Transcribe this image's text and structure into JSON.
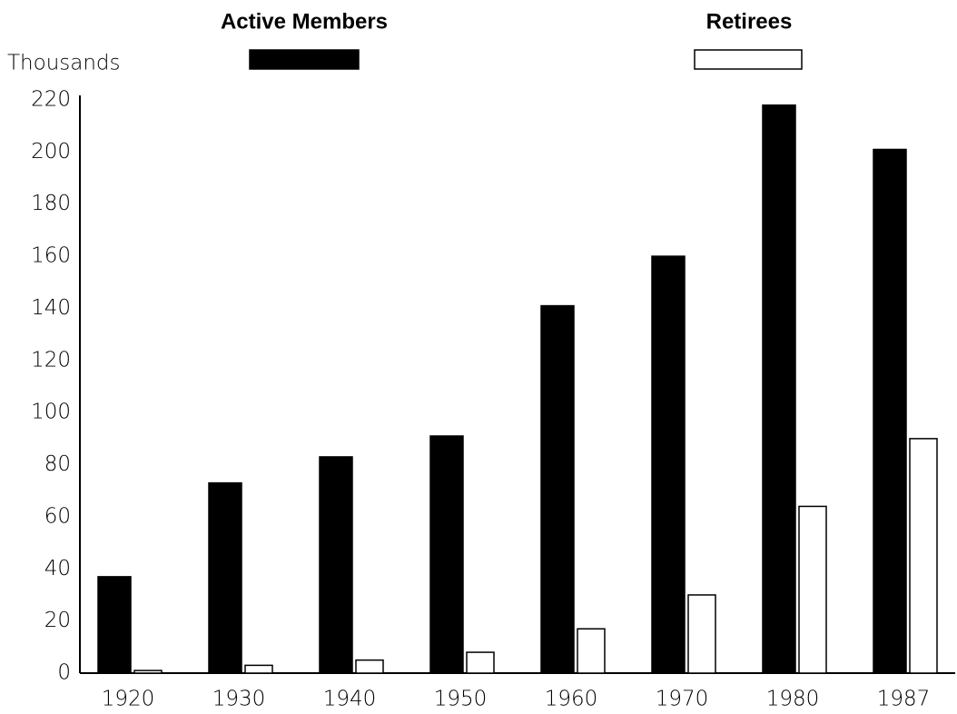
{
  "chart_data": {
    "type": "bar",
    "y_label": "Thousands",
    "categories": [
      "1920",
      "1930",
      "1940",
      "1950",
      "1960",
      "1970",
      "1980",
      "1987"
    ],
    "series": [
      {
        "name": "Active Members",
        "color": "#000000",
        "values": [
          37,
          73,
          83,
          91,
          141,
          160,
          218,
          201
        ]
      },
      {
        "name": "Retirees",
        "color": "#ffffff",
        "values": [
          1,
          3,
          5,
          8,
          17,
          30,
          64,
          90
        ]
      }
    ],
    "ylim": [
      0,
      220
    ],
    "yticks": [
      0,
      20,
      40,
      60,
      80,
      100,
      120,
      140,
      160,
      180,
      200,
      220
    ],
    "grid": false
  }
}
